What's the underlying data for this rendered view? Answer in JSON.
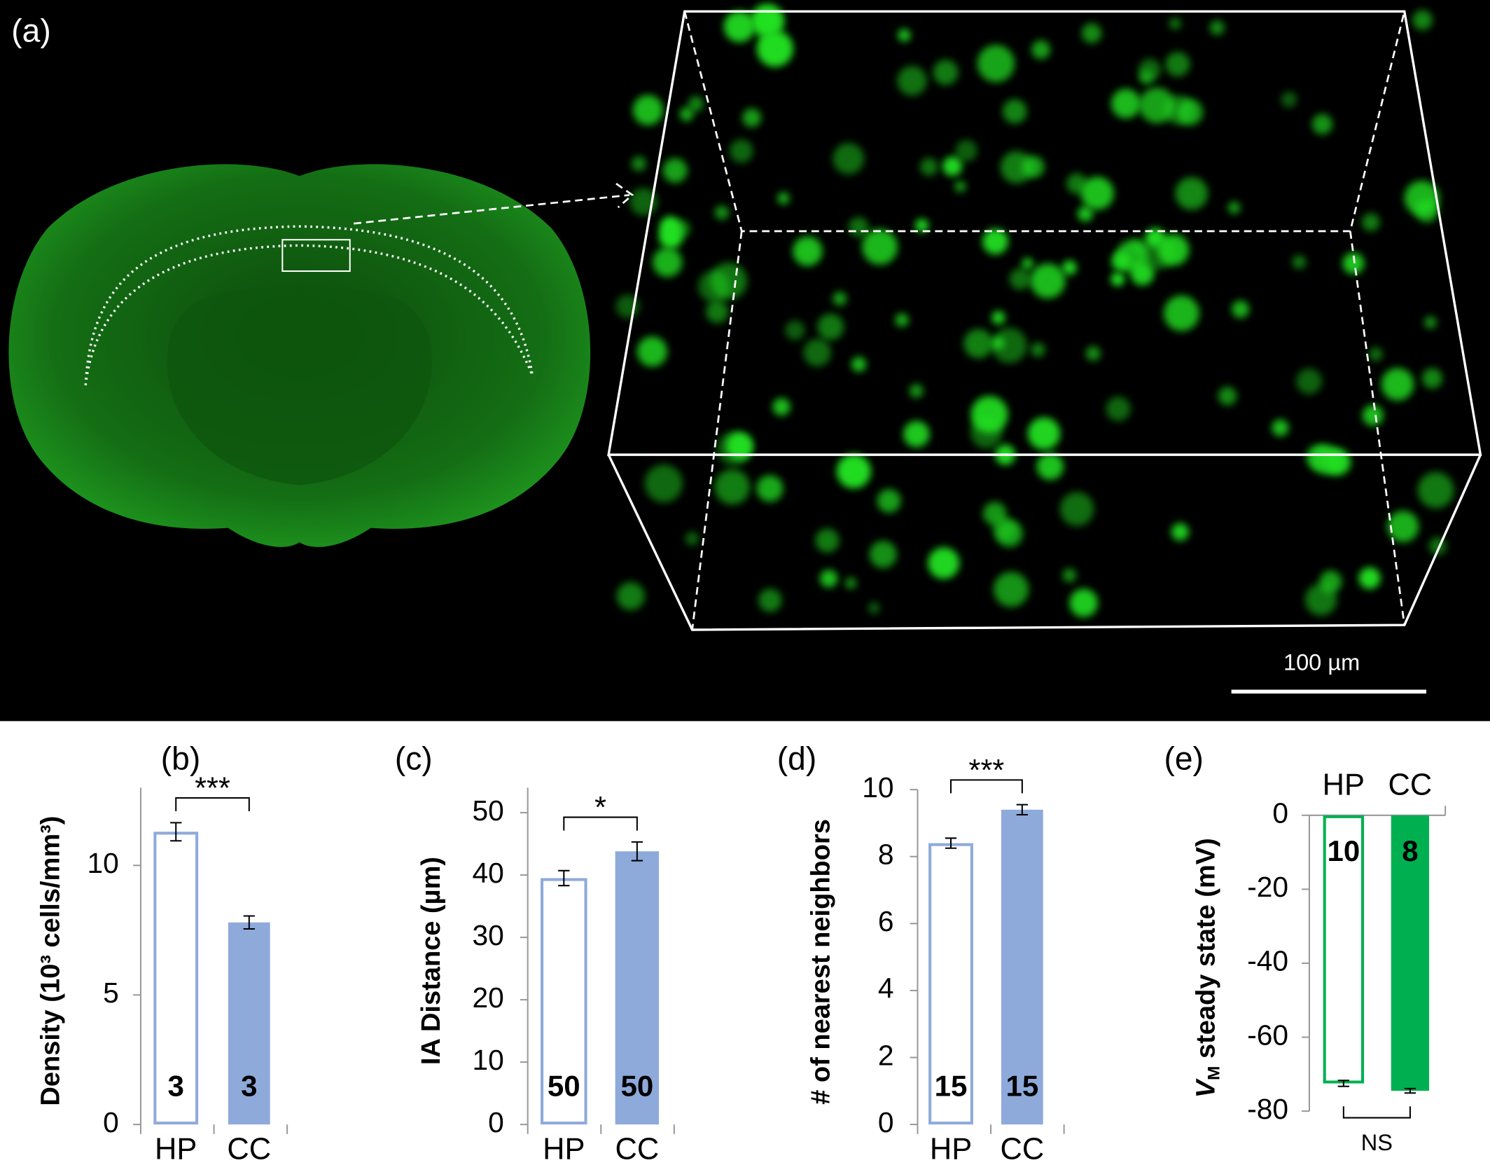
{
  "panel_a": {
    "label": "(a)",
    "scale_bar": "100 µm"
  },
  "chart_data": [
    {
      "type": "bar",
      "panel": "(b)",
      "ylabel": "Density (10³ cells/mm³)",
      "categories": [
        "HP",
        "CC"
      ],
      "values": [
        11.3,
        7.8
      ],
      "errors": [
        0.35,
        0.25
      ],
      "n": [
        3,
        3
      ],
      "color": "#8eaadb",
      "ylim": [
        0,
        13
      ],
      "yticks": [
        0,
        5,
        10
      ],
      "significance": "***"
    },
    {
      "type": "bar",
      "panel": "(c)",
      "ylabel": "IA Distance (µm)",
      "categories": [
        "HP",
        "CC"
      ],
      "values": [
        39.5,
        43.8
      ],
      "errors": [
        1.2,
        1.5
      ],
      "n": [
        50,
        50
      ],
      "color": "#8eaadb",
      "ylim": [
        0,
        54
      ],
      "yticks": [
        0,
        10,
        20,
        30,
        40,
        50
      ],
      "significance": "*"
    },
    {
      "type": "bar",
      "panel": "(d)",
      "ylabel": "# of nearest neighbors",
      "categories": [
        "HP",
        "CC"
      ],
      "values": [
        8.4,
        9.4
      ],
      "errors": [
        0.15,
        0.15
      ],
      "n": [
        15,
        15
      ],
      "color": "#8eaadb",
      "ylim": [
        0,
        10
      ],
      "yticks": [
        0,
        2,
        4,
        6,
        8,
        10
      ],
      "significance": "***"
    },
    {
      "type": "bar",
      "panel": "(e)",
      "ylabel": [
        "V",
        "M",
        " steady state (mV)"
      ],
      "categories": [
        "HP",
        "CC"
      ],
      "values": [
        -72.5,
        -74.5
      ],
      "errors": [
        0.8,
        0.6
      ],
      "n": [
        10,
        8
      ],
      "color": "#00b050",
      "ylim": [
        -80,
        0
      ],
      "yticks": [
        -80,
        -60,
        -40,
        -20,
        0
      ],
      "significance": "NS"
    }
  ]
}
